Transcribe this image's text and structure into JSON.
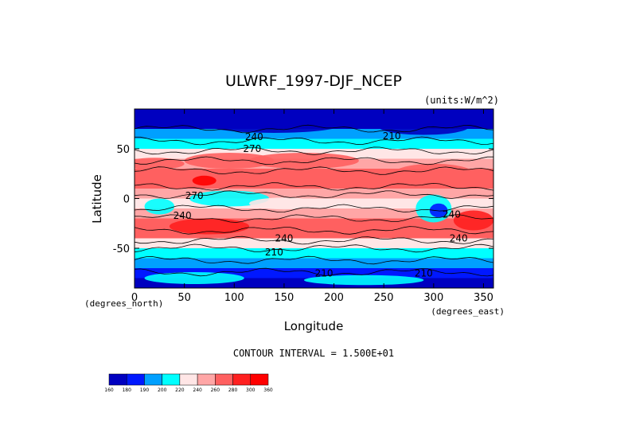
{
  "chart_data": {
    "type": "heatmap",
    "title": "ULWRF_1997-DJF_NCEP",
    "units_note": "(units:W/m^2)",
    "xlabel": "Longitude",
    "ylabel": "Latitude",
    "x_unit_note": "(degrees_east)",
    "y_unit_note": "(degrees_north)",
    "xlim": [
      0,
      360
    ],
    "ylim": [
      -90,
      90
    ],
    "x_ticks": [
      "0",
      "50",
      "100",
      "150",
      "200",
      "250",
      "300",
      "350"
    ],
    "y_ticks": [
      "50",
      "0",
      "-50"
    ],
    "x_tick_values": [
      0,
      50,
      100,
      150,
      200,
      250,
      300,
      350
    ],
    "y_tick_values": [
      50,
      0,
      -50
    ],
    "contour_interval_text": "CONTOUR INTERVAL = 1.500E+01",
    "contour_labels": [
      {
        "text": "240",
        "lon": 120,
        "lat": 62
      },
      {
        "text": "270",
        "lon": 118,
        "lat": 50
      },
      {
        "text": "210",
        "lon": 258,
        "lat": 63
      },
      {
        "text": "210",
        "lon": 140,
        "lat": -54
      },
      {
        "text": "240",
        "lon": 150,
        "lat": -40
      },
      {
        "text": "240",
        "lon": 48,
        "lat": -17
      },
      {
        "text": "270",
        "lon": 60,
        "lat": 3
      },
      {
        "text": "240",
        "lon": 318,
        "lat": -16
      },
      {
        "text": "240",
        "lon": 325,
        "lat": -40
      },
      {
        "text": "210",
        "lon": 190,
        "lat": -75
      },
      {
        "text": "210",
        "lon": 290,
        "lat": -75
      }
    ],
    "zonal_mean_by_lat": [
      {
        "lat": 85,
        "value": 165
      },
      {
        "lat": 75,
        "value": 175
      },
      {
        "lat": 65,
        "value": 190
      },
      {
        "lat": 55,
        "value": 205
      },
      {
        "lat": 45,
        "value": 225
      },
      {
        "lat": 35,
        "value": 255
      },
      {
        "lat": 25,
        "value": 275
      },
      {
        "lat": 15,
        "value": 270
      },
      {
        "lat": 5,
        "value": 240
      },
      {
        "lat": -5,
        "value": 235
      },
      {
        "lat": -15,
        "value": 255
      },
      {
        "lat": -25,
        "value": 275
      },
      {
        "lat": -35,
        "value": 262
      },
      {
        "lat": -45,
        "value": 232
      },
      {
        "lat": -55,
        "value": 212
      },
      {
        "lat": -65,
        "value": 198
      },
      {
        "lat": -75,
        "value": 188
      },
      {
        "lat": -85,
        "value": 178
      }
    ],
    "colorbar": {
      "labels": [
        "160",
        "180",
        "190",
        "200",
        "220",
        "240",
        "260",
        "280",
        "300",
        "360"
      ],
      "colors": [
        "#0000c0",
        "#0018ff",
        "#00a0ff",
        "#00ffff",
        "#ffe6e6",
        "#ffa6a6",
        "#ff6060",
        "#ff2020",
        "#ff0000"
      ],
      "orientation": "horizontal",
      "placement": "bottom-left"
    }
  }
}
